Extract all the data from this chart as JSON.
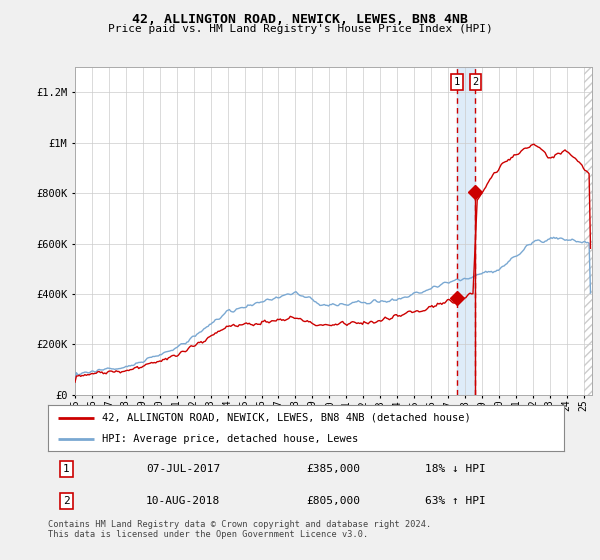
{
  "title": "42, ALLINGTON ROAD, NEWICK, LEWES, BN8 4NB",
  "subtitle": "Price paid vs. HM Land Registry's House Price Index (HPI)",
  "xlim_start": 1995.0,
  "xlim_end": 2025.5,
  "ylim": [
    0,
    1300000
  ],
  "yticks": [
    0,
    200000,
    400000,
    600000,
    800000,
    1000000,
    1200000
  ],
  "ytick_labels": [
    "£0",
    "£200K",
    "£400K",
    "£600K",
    "£800K",
    "£1M",
    "£1.2M"
  ],
  "hpi_color": "#7aa8d2",
  "price_color": "#cc0000",
  "transaction1_date": 2017.52,
  "transaction1_price": 385000,
  "transaction2_date": 2018.61,
  "transaction2_price": 805000,
  "legend_line1": "42, ALLINGTON ROAD, NEWICK, LEWES, BN8 4NB (detached house)",
  "legend_line2": "HPI: Average price, detached house, Lewes",
  "ann1_text": "07-JUL-2017",
  "ann1_amount": "£385,000",
  "ann1_pct": "18% ↓ HPI",
  "ann2_text": "10-AUG-2018",
  "ann2_amount": "£805,000",
  "ann2_pct": "63% ↑ HPI",
  "footnote": "Contains HM Land Registry data © Crown copyright and database right 2024.\nThis data is licensed under the Open Government Licence v3.0.",
  "bg_color": "#f0f0f0",
  "plot_bg_color": "#ffffff"
}
